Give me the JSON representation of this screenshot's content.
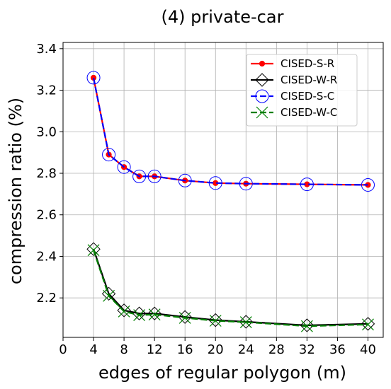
{
  "chart_data": {
    "type": "line",
    "title": "(4) private-car",
    "xlabel": "edges of regular polygon (m)",
    "ylabel": "compression ratio (%)",
    "xlim": [
      0,
      42
    ],
    "ylim": [
      2.01,
      3.43
    ],
    "xticks": [
      0,
      4,
      8,
      12,
      16,
      20,
      24,
      28,
      32,
      36,
      40
    ],
    "yticks": [
      2.2,
      2.4,
      2.6,
      2.8,
      3.0,
      3.2,
      3.4
    ],
    "xtick_labels": [
      "0",
      "4",
      "8",
      "12",
      "16",
      "20",
      "24",
      "28",
      "32",
      "36",
      "40"
    ],
    "ytick_labels": [
      "2.2",
      "2.4",
      "2.6",
      "2.8",
      "3.0",
      "3.2",
      "3.4"
    ],
    "grid": true,
    "legend_position": "top-right",
    "x": [
      4,
      6,
      8,
      10,
      12,
      16,
      20,
      24,
      32,
      40
    ],
    "series": [
      {
        "name": "CISED-S-R",
        "color": "#ff0000",
        "linestyle": "solid",
        "marker": "dot",
        "values": [
          3.26,
          2.89,
          2.83,
          2.785,
          2.785,
          2.765,
          2.753,
          2.75,
          2.747,
          2.744
        ]
      },
      {
        "name": "CISED-W-R",
        "color": "#000000",
        "linestyle": "solid",
        "marker": "diamond",
        "values": [
          2.435,
          2.22,
          2.14,
          2.125,
          2.125,
          2.108,
          2.093,
          2.085,
          2.068,
          2.075
        ]
      },
      {
        "name": "CISED-S-C",
        "color": "#0000ff",
        "linestyle": "dashed",
        "marker": "circle",
        "values": [
          3.26,
          2.89,
          2.83,
          2.785,
          2.785,
          2.765,
          2.753,
          2.75,
          2.747,
          2.744
        ]
      },
      {
        "name": "CISED-W-C",
        "color": "#008000",
        "linestyle": "dashed",
        "marker": "x",
        "values": [
          2.43,
          2.21,
          2.135,
          2.117,
          2.12,
          2.104,
          2.09,
          2.083,
          2.064,
          2.072
        ]
      }
    ]
  }
}
